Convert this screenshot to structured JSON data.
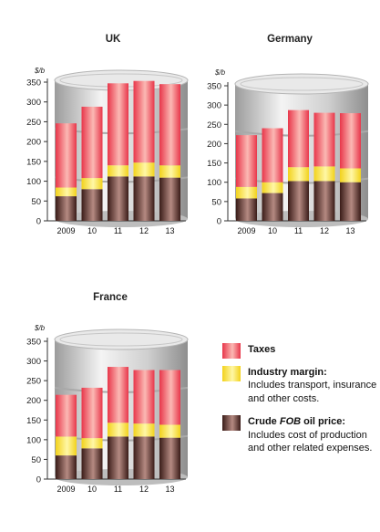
{
  "chart_data": [
    {
      "type": "bar",
      "stacked": true,
      "title": "UK",
      "unit_label": "$/b",
      "categories": [
        "2009",
        "10",
        "11",
        "12",
        "13"
      ],
      "yticks": [
        0,
        50,
        100,
        150,
        200,
        250,
        300,
        350
      ],
      "ylim": [
        0,
        350
      ],
      "series": [
        {
          "name": "Crude FOB oil price",
          "values": [
            62,
            80,
            112,
            112,
            109
          ]
        },
        {
          "name": "Industry margin",
          "values": [
            22,
            28,
            28,
            35,
            31
          ]
        },
        {
          "name": "Taxes",
          "values": [
            162,
            180,
            207,
            206,
            205
          ]
        }
      ]
    },
    {
      "type": "bar",
      "stacked": true,
      "title": "Germany",
      "unit_label": "$/b",
      "categories": [
        "2009",
        "10",
        "11",
        "12",
        "13"
      ],
      "yticks": [
        0,
        50,
        100,
        150,
        200,
        250,
        300,
        350
      ],
      "ylim": [
        0,
        350
      ],
      "series": [
        {
          "name": "Crude FOB oil price",
          "values": [
            58,
            72,
            103,
            103,
            100
          ]
        },
        {
          "name": "Industry margin",
          "values": [
            30,
            28,
            36,
            38,
            36
          ]
        },
        {
          "name": "Taxes",
          "values": [
            134,
            140,
            148,
            139,
            143
          ]
        }
      ]
    },
    {
      "type": "bar",
      "stacked": true,
      "title": "France",
      "unit_label": "$/b",
      "categories": [
        "2009",
        "10",
        "11",
        "12",
        "13"
      ],
      "yticks": [
        0,
        50,
        100,
        150,
        200,
        250,
        300,
        350
      ],
      "ylim": [
        0,
        350
      ],
      "series": [
        {
          "name": "Crude FOB oil price",
          "values": [
            60,
            78,
            108,
            108,
            105
          ]
        },
        {
          "name": "Industry margin",
          "values": [
            48,
            26,
            35,
            33,
            33
          ]
        },
        {
          "name": "Taxes",
          "values": [
            106,
            128,
            142,
            136,
            139
          ]
        }
      ]
    }
  ],
  "legend": {
    "taxes": {
      "label": "Taxes"
    },
    "margin": {
      "label": "Industry margin:",
      "desc": "Includes transport, insurance and other costs."
    },
    "crude": {
      "label_pre": "Crude ",
      "label_em": "FOB",
      "label_post": " oil price:",
      "desc": "Includes cost of production and other related expenses."
    }
  },
  "colors": {
    "taxes": "#e8364a",
    "taxes_highlight": "#fbb9b4",
    "margin": "#f5dc2c",
    "margin_highlight": "#fff7a6",
    "crude": "#3a1c18",
    "crude_highlight": "#b58a82",
    "barrel": "#cfcfcf",
    "axis": "#333333"
  }
}
